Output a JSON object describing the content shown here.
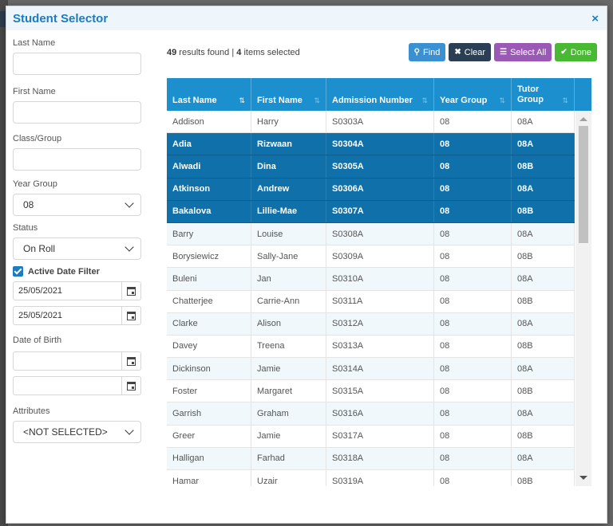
{
  "dialog": {
    "title": "Student Selector",
    "close_icon": "×"
  },
  "filters": {
    "last_name_label": "Last Name",
    "last_name_value": "",
    "first_name_label": "First Name",
    "first_name_value": "",
    "class_group_label": "Class/Group",
    "class_group_value": "",
    "year_group_label": "Year Group",
    "year_group_value": "08",
    "status_label": "Status",
    "status_value": "On Roll",
    "active_date_filter_label": "Active Date Filter",
    "active_date_from": "25/05/2021",
    "active_date_to": "25/05/2021",
    "dob_label": "Date of Birth",
    "dob_from": "",
    "dob_to": "",
    "attributes_label": "Attributes",
    "attributes_value": "<NOT SELECTED>"
  },
  "results": {
    "count": "49",
    "found_text": " results found | ",
    "selected": "4",
    "selected_text": " items selected"
  },
  "buttons": {
    "find": "Find",
    "clear": "Clear",
    "select_all": "Select All",
    "done": "Done"
  },
  "colors": {
    "accent": "#1c8fcf",
    "selected_row": "#1070a9",
    "find": "#3a90d0",
    "clear": "#2a3f54",
    "select_all": "#9a59b5",
    "done": "#49b832"
  },
  "table": {
    "columns": [
      "Last Name",
      "First Name",
      "Admission Number",
      "Year Group",
      "Tutor Group"
    ],
    "rows": [
      {
        "last": "Addison",
        "first": "Harry",
        "adm": "S0303A",
        "year": "08",
        "tutor": "08A",
        "selected": false
      },
      {
        "last": "Adia",
        "first": "Rizwaan",
        "adm": "S0304A",
        "year": "08",
        "tutor": "08A",
        "selected": true
      },
      {
        "last": "Alwadi",
        "first": "Dina",
        "adm": "S0305A",
        "year": "08",
        "tutor": "08B",
        "selected": true
      },
      {
        "last": "Atkinson",
        "first": "Andrew",
        "adm": "S0306A",
        "year": "08",
        "tutor": "08A",
        "selected": true
      },
      {
        "last": "Bakalova",
        "first": "Lillie-Mae",
        "adm": "S0307A",
        "year": "08",
        "tutor": "08B",
        "selected": true
      },
      {
        "last": "Barry",
        "first": "Louise",
        "adm": "S0308A",
        "year": "08",
        "tutor": "08A",
        "selected": false
      },
      {
        "last": "Borysiewicz",
        "first": "Sally-Jane",
        "adm": "S0309A",
        "year": "08",
        "tutor": "08B",
        "selected": false
      },
      {
        "last": "Buleni",
        "first": "Jan",
        "adm": "S0310A",
        "year": "08",
        "tutor": "08A",
        "selected": false
      },
      {
        "last": "Chatterjee",
        "first": "Carrie-Ann",
        "adm": "S0311A",
        "year": "08",
        "tutor": "08B",
        "selected": false
      },
      {
        "last": "Clarke",
        "first": "Alison",
        "adm": "S0312A",
        "year": "08",
        "tutor": "08A",
        "selected": false
      },
      {
        "last": "Davey",
        "first": "Treena",
        "adm": "S0313A",
        "year": "08",
        "tutor": "08B",
        "selected": false
      },
      {
        "last": "Dickinson",
        "first": "Jamie",
        "adm": "S0314A",
        "year": "08",
        "tutor": "08A",
        "selected": false
      },
      {
        "last": "Foster",
        "first": "Margaret",
        "adm": "S0315A",
        "year": "08",
        "tutor": "08B",
        "selected": false
      },
      {
        "last": "Garrish",
        "first": "Graham",
        "adm": "S0316A",
        "year": "08",
        "tutor": "08A",
        "selected": false
      },
      {
        "last": "Greer",
        "first": "Jamie",
        "adm": "S0317A",
        "year": "08",
        "tutor": "08B",
        "selected": false
      },
      {
        "last": "Halligan",
        "first": "Farhad",
        "adm": "S0318A",
        "year": "08",
        "tutor": "08A",
        "selected": false
      },
      {
        "last": "Hamar",
        "first": "Uzair",
        "adm": "S0319A",
        "year": "08",
        "tutor": "08B",
        "selected": false
      }
    ]
  }
}
